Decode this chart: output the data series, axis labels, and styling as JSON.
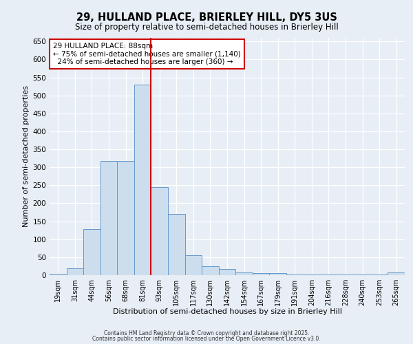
{
  "title_line1": "29, HULLAND PLACE, BRIERLEY HILL, DY5 3US",
  "title_line2": "Size of property relative to semi-detached houses in Brierley Hill",
  "xlabel": "Distribution of semi-detached houses by size in Brierley Hill",
  "ylabel": "Number of semi-detached properties",
  "bin_labels": [
    "19sqm",
    "31sqm",
    "44sqm",
    "56sqm",
    "68sqm",
    "81sqm",
    "93sqm",
    "105sqm",
    "117sqm",
    "130sqm",
    "142sqm",
    "154sqm",
    "167sqm",
    "179sqm",
    "191sqm",
    "204sqm",
    "216sqm",
    "228sqm",
    "240sqm",
    "253sqm",
    "265sqm"
  ],
  "bin_values": [
    3,
    20,
    128,
    318,
    318,
    530,
    245,
    170,
    55,
    25,
    18,
    7,
    5,
    5,
    2,
    2,
    2,
    2,
    2,
    2,
    7
  ],
  "bar_color": "#ccdded",
  "bar_edge_color": "#6699cc",
  "annotation_text": "29 HULLAND PLACE: 88sqm\n← 75% of semi-detached houses are smaller (1,140)\n  24% of semi-detached houses are larger (360) →",
  "annotation_box_color": "#ffffff",
  "annotation_box_edge_color": "#cc0000",
  "footer_line1": "Contains HM Land Registry data © Crown copyright and database right 2025.",
  "footer_line2": "Contains public sector information licensed under the Open Government Licence v3.0.",
  "background_color": "#e8eef5",
  "ylim": [
    0,
    660
  ],
  "yticks": [
    0,
    50,
    100,
    150,
    200,
    250,
    300,
    350,
    400,
    450,
    500,
    550,
    600,
    650
  ],
  "red_line_bin_index": 6
}
